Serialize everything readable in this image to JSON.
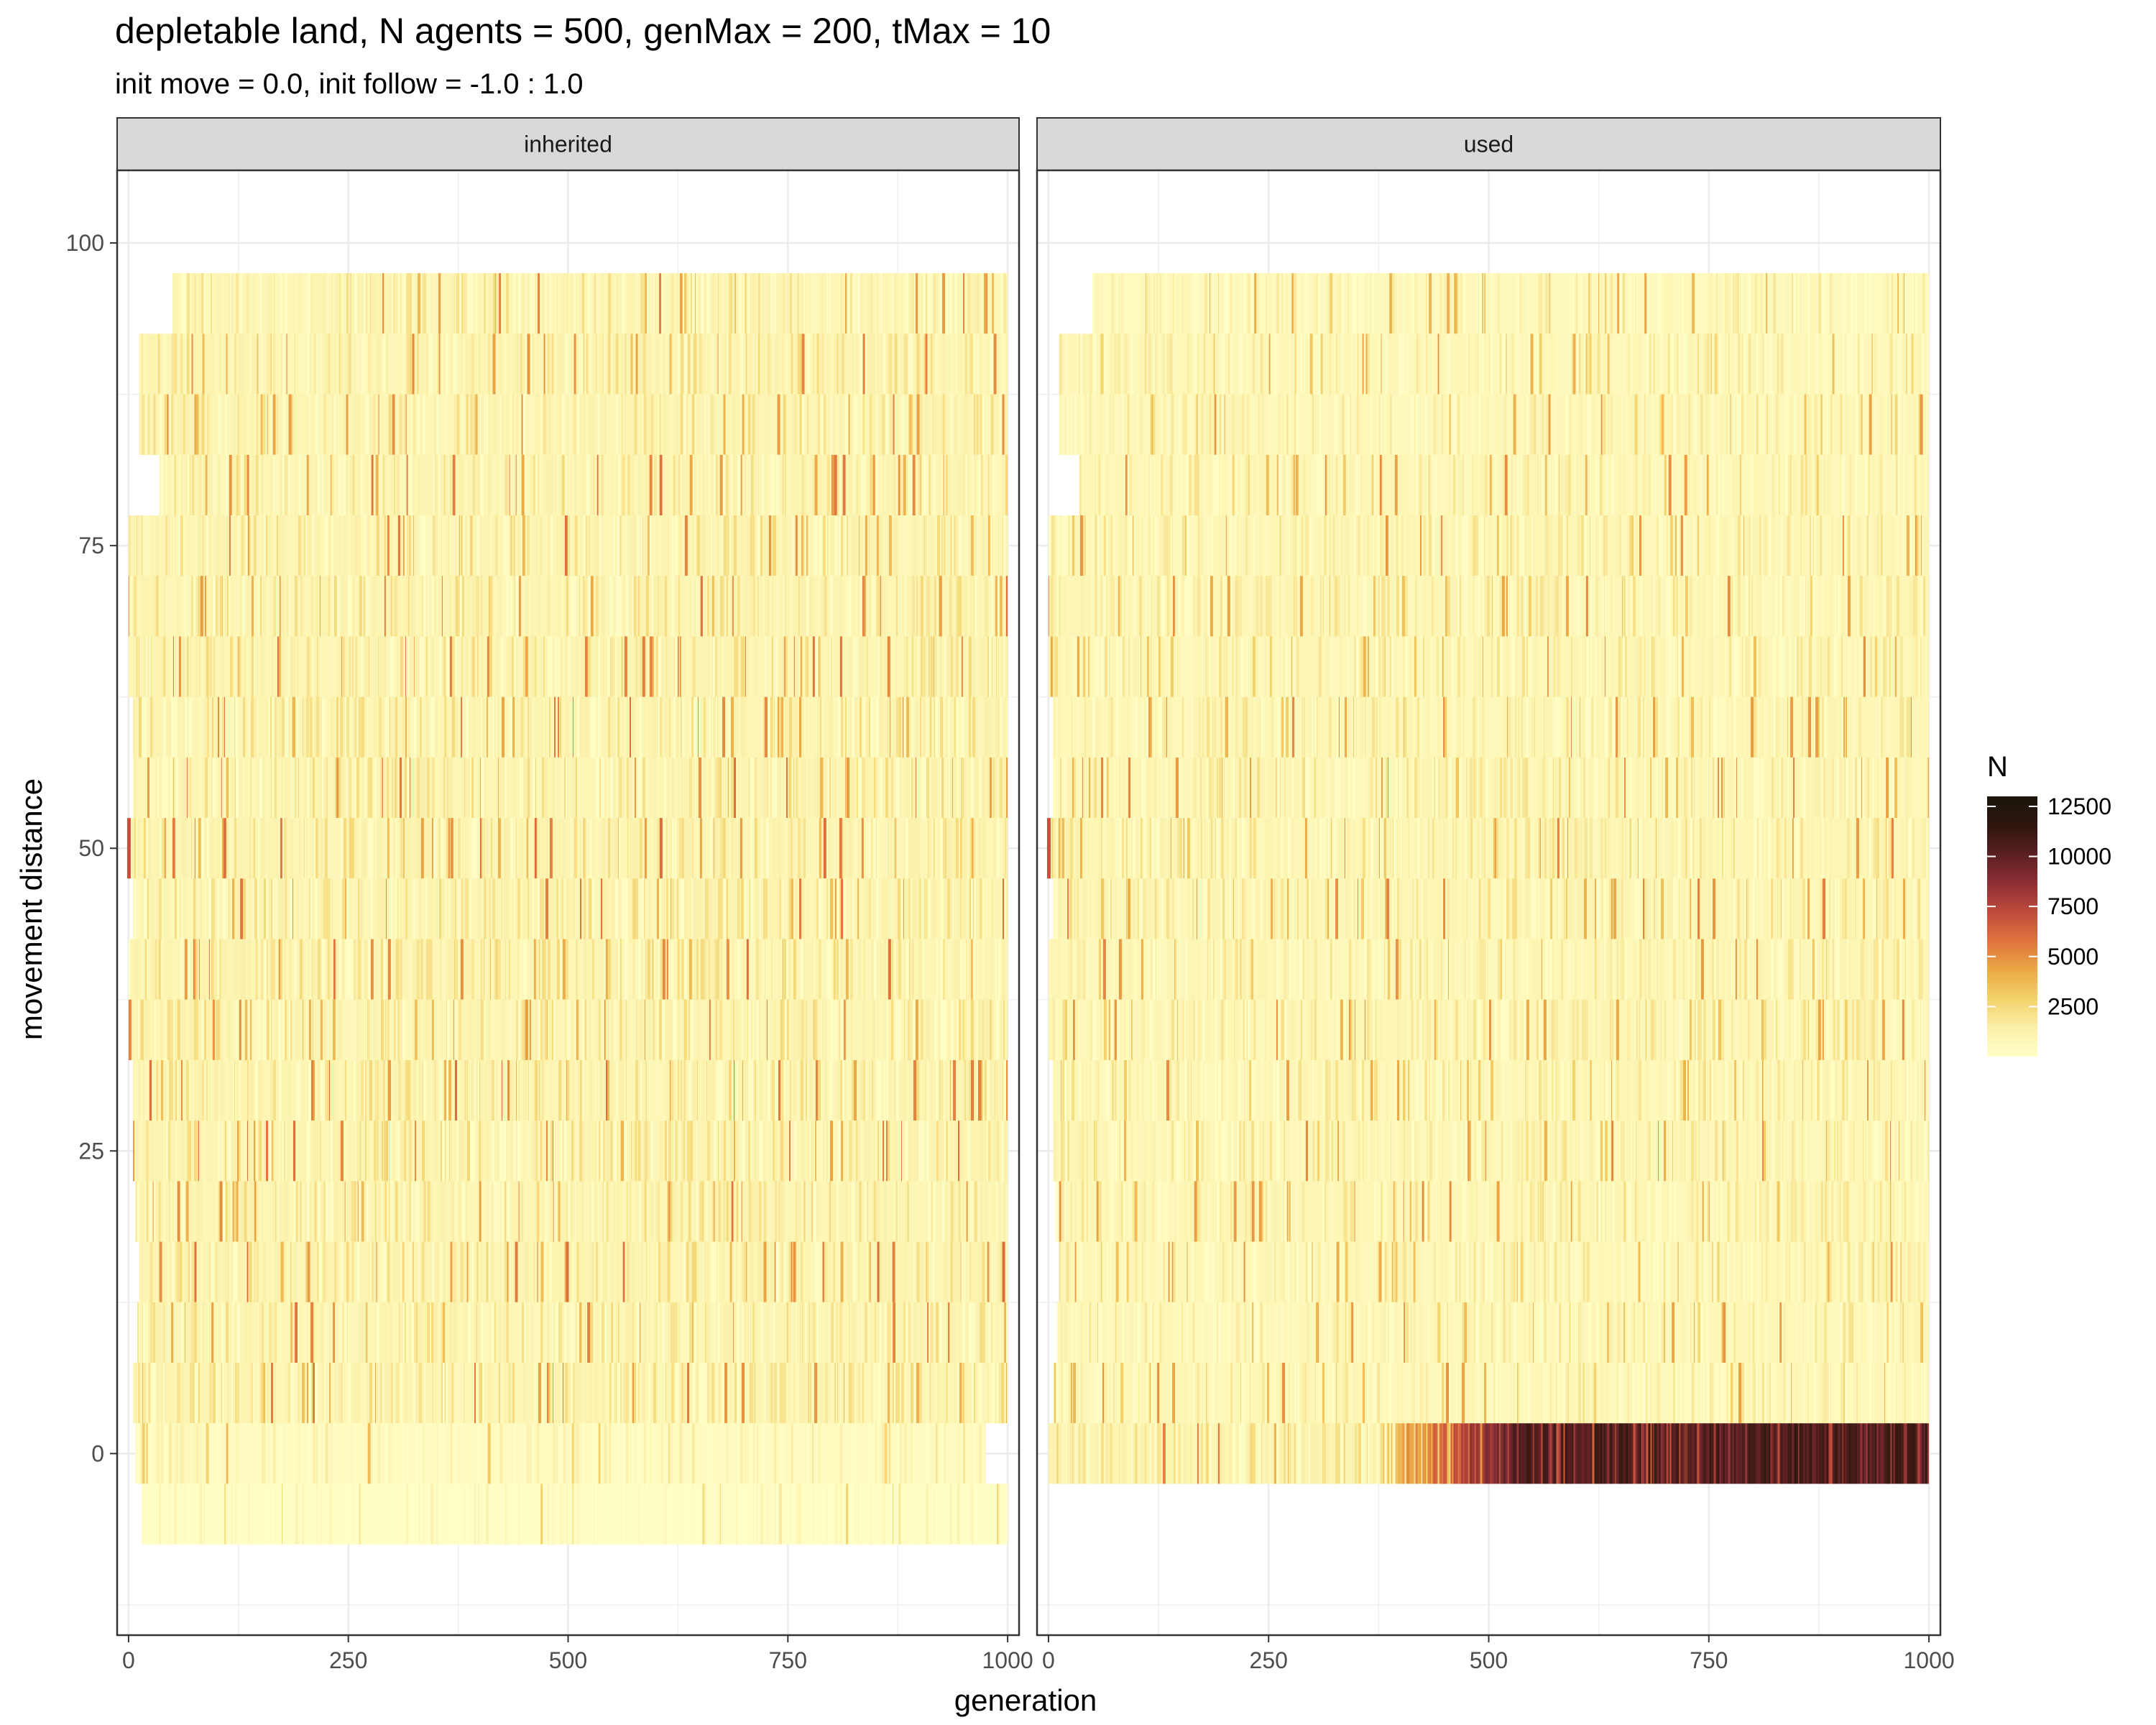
{
  "chart_data": {
    "type": "heatmap",
    "title": "depletable land, N agents = 500, genMax = 200, tMax = 10",
    "subtitle": "init move = 0.0, init follow = -1.0 : 1.0",
    "xlabel": "generation",
    "ylabel": "movement distance",
    "xlim": [
      -13,
      1013
    ],
    "ylim": [
      -15,
      106
    ],
    "x_ticks": [
      0,
      250,
      500,
      750,
      1000
    ],
    "x_tick_labels": [
      "0",
      "250",
      "500",
      "750",
      "1000"
    ],
    "y_ticks": [
      0,
      25,
      50,
      75,
      100
    ],
    "y_tick_labels": [
      "0",
      "25",
      "50",
      "75",
      "100"
    ],
    "grid": true,
    "bin_height": 5,
    "y_bin_centers": [
      -5,
      0,
      5,
      10,
      15,
      20,
      25,
      30,
      35,
      40,
      45,
      50,
      55,
      60,
      65,
      70,
      75,
      80,
      85,
      90,
      95
    ],
    "facets": [
      {
        "name": "inherited",
        "x_start": 0,
        "x_end": 1000,
        "rows": [
          {
            "y": 95,
            "x_from": 50,
            "x_to": 1000,
            "level": 900
          },
          {
            "y": 90,
            "x_from": 12,
            "x_to": 1000,
            "level": 950
          },
          {
            "y": 85,
            "x_from": 12,
            "x_to": 1000,
            "level": 950
          },
          {
            "y": 80,
            "x_from": 35,
            "x_to": 1000,
            "level": 950
          },
          {
            "y": 75,
            "x_from": 0,
            "x_to": 1000,
            "level": 1000
          },
          {
            "y": 70,
            "x_from": 0,
            "x_to": 1000,
            "level": 1000
          },
          {
            "y": 65,
            "x_from": 0,
            "x_to": 1000,
            "level": 1000
          },
          {
            "y": 60,
            "x_from": 5,
            "x_to": 1000,
            "level": 1000
          },
          {
            "y": 55,
            "x_from": 5,
            "x_to": 1000,
            "level": 1000
          },
          {
            "y": 50,
            "x_from": 0,
            "x_to": 1000,
            "level": 1000
          },
          {
            "y": 45,
            "x_from": 5,
            "x_to": 1000,
            "level": 1000
          },
          {
            "y": 40,
            "x_from": 0,
            "x_to": 1000,
            "level": 1000
          },
          {
            "y": 35,
            "x_from": 0,
            "x_to": 1000,
            "level": 1000
          },
          {
            "y": 30,
            "x_from": 5,
            "x_to": 1000,
            "level": 1000
          },
          {
            "y": 25,
            "x_from": 5,
            "x_to": 1000,
            "level": 1000
          },
          {
            "y": 20,
            "x_from": 8,
            "x_to": 1000,
            "level": 1000
          },
          {
            "y": 15,
            "x_from": 12,
            "x_to": 1000,
            "level": 1000
          },
          {
            "y": 10,
            "x_from": 10,
            "x_to": 1000,
            "level": 950
          },
          {
            "y": 5,
            "x_from": 5,
            "x_to": 1000,
            "level": 950
          },
          {
            "y": 0,
            "x_from": 8,
            "x_to": 975,
            "level": 400
          },
          {
            "y": -5,
            "x_from": 15,
            "x_to": 1000,
            "level": 150
          }
        ],
        "hot_spots": [
          {
            "x": 0,
            "y": 50,
            "N": 7000
          }
        ]
      },
      {
        "name": "used",
        "x_start": 0,
        "x_end": 1000,
        "rows": [
          {
            "y": 95,
            "x_from": 50,
            "x_to": 1000,
            "level": 600
          },
          {
            "y": 90,
            "x_from": 12,
            "x_to": 1000,
            "level": 700
          },
          {
            "y": 85,
            "x_from": 12,
            "x_to": 1000,
            "level": 700
          },
          {
            "y": 80,
            "x_from": 35,
            "x_to": 1000,
            "level": 750
          },
          {
            "y": 75,
            "x_from": 0,
            "x_to": 1000,
            "level": 800
          },
          {
            "y": 70,
            "x_from": 0,
            "x_to": 1000,
            "level": 800
          },
          {
            "y": 65,
            "x_from": 0,
            "x_to": 1000,
            "level": 800
          },
          {
            "y": 60,
            "x_from": 5,
            "x_to": 1000,
            "level": 800
          },
          {
            "y": 55,
            "x_from": 5,
            "x_to": 1000,
            "level": 850
          },
          {
            "y": 50,
            "x_from": 0,
            "x_to": 1000,
            "level": 900
          },
          {
            "y": 45,
            "x_from": 5,
            "x_to": 1000,
            "level": 850
          },
          {
            "y": 40,
            "x_from": 0,
            "x_to": 1000,
            "level": 800
          },
          {
            "y": 35,
            "x_from": 0,
            "x_to": 1000,
            "level": 800
          },
          {
            "y": 30,
            "x_from": 5,
            "x_to": 1000,
            "level": 800
          },
          {
            "y": 25,
            "x_from": 5,
            "x_to": 1000,
            "level": 800
          },
          {
            "y": 20,
            "x_from": 8,
            "x_to": 1000,
            "level": 800
          },
          {
            "y": 15,
            "x_from": 12,
            "x_to": 1000,
            "level": 750
          },
          {
            "y": 10,
            "x_from": 10,
            "x_to": 1000,
            "level": 700
          },
          {
            "y": 5,
            "x_from": 5,
            "x_to": 1000,
            "level": 700
          },
          {
            "y": 0,
            "x_from": 0,
            "x_to": 1000,
            "level": 1000
          }
        ],
        "hot_band": {
          "y": 0,
          "x_from": 380,
          "x_to": 1000,
          "N_from": 4000,
          "N_to": 11500
        },
        "hot_spots": [
          {
            "x": 0,
            "y": 50,
            "N": 7000
          }
        ]
      }
    ],
    "legend": {
      "title": "N",
      "position": "right",
      "ticks": [
        2500,
        5000,
        7500,
        10000,
        12500
      ],
      "tick_labels": [
        "2500",
        "5000",
        "7500",
        "10000",
        "12500"
      ],
      "range": [
        0,
        13000
      ],
      "colors": [
        "#FFFFC8",
        "#FBEFA8",
        "#F3D26A",
        "#EBA845",
        "#E0723E",
        "#BF4A3C",
        "#8E2F35",
        "#5A1F22",
        "#2E160E",
        "#1A150B"
      ]
    }
  }
}
